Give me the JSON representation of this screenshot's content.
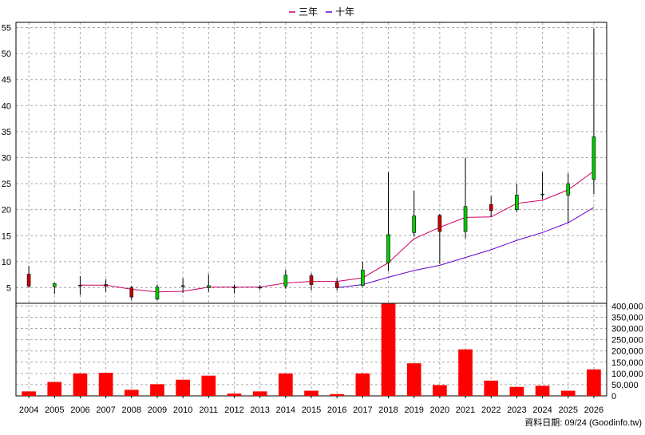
{
  "legend": [
    {
      "label": "三年",
      "color": "#cc0066"
    },
    {
      "label": "十年",
      "color": "#6600cc"
    }
  ],
  "footer": "資料日期: 09/24  (Goodinfo.tw)",
  "colors": {
    "up_candle": "#cc0000",
    "down_candle": "#00cc00",
    "volume_bar": "#ff0000",
    "grid": "#aaaaaa",
    "axis": "#000000"
  },
  "chart_data": [
    {
      "type": "candlestick",
      "title": "",
      "x": [
        "2004",
        "2005",
        "2006",
        "2007",
        "2008",
        "2009",
        "2010",
        "2011",
        "2012",
        "2013",
        "2014",
        "2015",
        "2016",
        "2017",
        "2018",
        "2019",
        "2020",
        "2021",
        "2022",
        "2023",
        "2024",
        "2025",
        "2026"
      ],
      "ylim": [
        2,
        56
      ],
      "yticks": [
        5,
        10,
        15,
        20,
        25,
        30,
        35,
        40,
        45,
        50,
        55
      ],
      "grid": true,
      "legend_position": "top-center",
      "ohlc": [
        {
          "open": 5.3,
          "high": 9.2,
          "low": 5.0,
          "close": 7.6
        },
        {
          "open": 5.8,
          "high": 5.9,
          "low": 3.8,
          "close": 5.2
        },
        {
          "open": 5.5,
          "high": 7.2,
          "low": 3.6,
          "close": 5.5
        },
        {
          "open": 5.3,
          "high": 6.6,
          "low": 4.2,
          "close": 5.6
        },
        {
          "open": 3.2,
          "high": 5.4,
          "low": 2.6,
          "close": 5.0
        },
        {
          "open": 5.1,
          "high": 5.6,
          "low": 2.6,
          "close": 2.8
        },
        {
          "open": 5.4,
          "high": 6.8,
          "low": 4.0,
          "close": 5.4
        },
        {
          "open": 5.4,
          "high": 7.6,
          "low": 4.2,
          "close": 5.0
        },
        {
          "open": 5.1,
          "high": 5.6,
          "low": 3.9,
          "close": 5.1
        },
        {
          "open": 5.1,
          "high": 5.5,
          "low": 4.6,
          "close": 5.1
        },
        {
          "open": 7.4,
          "high": 8.5,
          "low": 4.8,
          "close": 5.3
        },
        {
          "open": 5.6,
          "high": 7.8,
          "low": 4.5,
          "close": 7.3
        },
        {
          "open": 5.0,
          "high": 6.8,
          "low": 4.5,
          "close": 6.0
        },
        {
          "open": 8.4,
          "high": 10.0,
          "low": 5.2,
          "close": 5.4
        },
        {
          "open": 15.2,
          "high": 27.2,
          "low": 8.2,
          "close": 9.8
        },
        {
          "open": 18.8,
          "high": 23.6,
          "low": 14.8,
          "close": 15.6
        },
        {
          "open": 15.8,
          "high": 19.2,
          "low": 9.6,
          "close": 18.9
        },
        {
          "open": 20.6,
          "high": 29.9,
          "low": 14.5,
          "close": 15.8
        },
        {
          "open": 19.8,
          "high": 22.6,
          "low": 18.6,
          "close": 21.0
        },
        {
          "open": 22.8,
          "high": 25.0,
          "low": 19.5,
          "close": 20.0
        },
        {
          "open": 23.0,
          "high": 27.2,
          "low": 22.0,
          "close": 22.9
        },
        {
          "open": 25.0,
          "high": 27.0,
          "low": 17.5,
          "close": 22.8
        },
        {
          "open": 34.0,
          "high": 54.8,
          "low": 23.0,
          "close": 25.8
        }
      ],
      "series": [
        {
          "name": "三年",
          "color": "#cc0066",
          "values": [
            null,
            null,
            5.5,
            5.5,
            4.7,
            4.2,
            4.3,
            5.1,
            5.1,
            5.1,
            5.9,
            6.2,
            6.2,
            6.9,
            9.8,
            14.4,
            16.6,
            18.5,
            18.6,
            21.2,
            21.8,
            23.8,
            27.4
          ]
        },
        {
          "name": "十年",
          "color": "#6600cc",
          "values": [
            null,
            null,
            null,
            null,
            null,
            null,
            null,
            null,
            null,
            null,
            null,
            null,
            5.0,
            5.6,
            7.0,
            8.3,
            9.3,
            10.8,
            12.3,
            14.1,
            15.6,
            17.5,
            20.4
          ]
        }
      ]
    },
    {
      "type": "bar",
      "title": "",
      "categories": [
        "2004",
        "2005",
        "2006",
        "2007",
        "2008",
        "2009",
        "2010",
        "2011",
        "2012",
        "2013",
        "2014",
        "2015",
        "2016",
        "2017",
        "2018",
        "2019",
        "2020",
        "2021",
        "2022",
        "2023",
        "2024",
        "2025",
        "2026"
      ],
      "values": [
        20000,
        62000,
        100000,
        103000,
        27000,
        52000,
        72000,
        90000,
        10000,
        20000,
        100000,
        23000,
        8000,
        100000,
        410000,
        145000,
        48000,
        207000,
        68000,
        40000,
        45000,
        23000,
        118000
      ],
      "ylim": [
        0,
        412000
      ],
      "yticks": [
        "0",
        "50,000",
        "100,000",
        "150,000",
        "200,000",
        "250,000",
        "300,000",
        "350,000",
        "400,000"
      ],
      "ytick_values": [
        0,
        50000,
        100000,
        150000,
        200000,
        250000,
        300000,
        350000,
        400000
      ],
      "grid": true
    }
  ]
}
